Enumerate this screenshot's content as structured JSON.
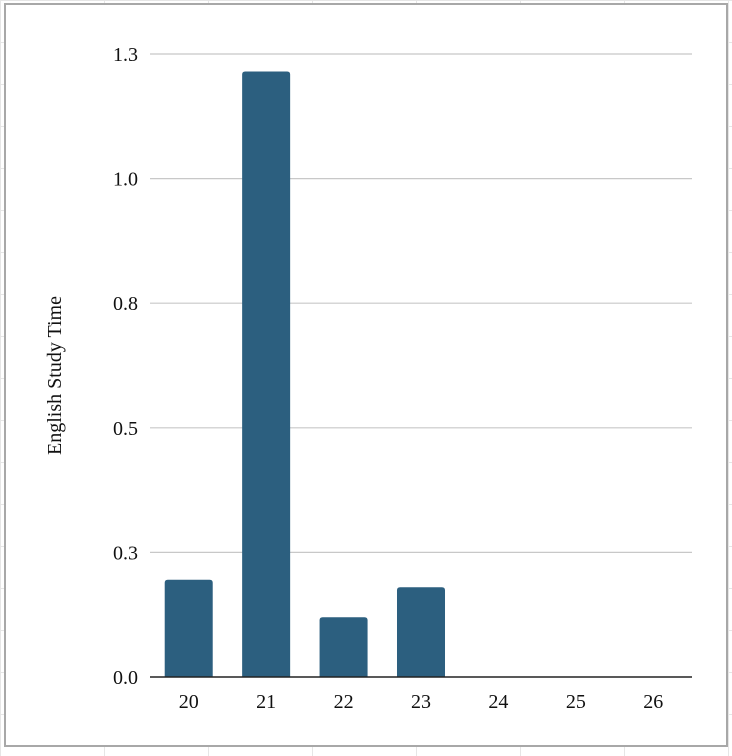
{
  "chart_data": {
    "type": "bar",
    "title": "",
    "xlabel": "",
    "ylabel": "English Study Time",
    "categories": [
      "20",
      "21",
      "22",
      "23",
      "24",
      "25",
      "26"
    ],
    "values": [
      0.195,
      1.215,
      0.12,
      0.18,
      0,
      0,
      0
    ],
    "ylim": [
      0,
      1.25
    ],
    "yticks": [
      0,
      0.25,
      0.5,
      0.75,
      1.0,
      1.25
    ],
    "ytick_labels": [
      "0.0",
      "0.3",
      "0.5",
      "0.8",
      "1.0",
      "1.3"
    ],
    "grid": true,
    "legend": "none",
    "colors": {
      "bar": "#2c5f7f",
      "grid": "#c8c8c8",
      "axis": "#222222"
    }
  }
}
